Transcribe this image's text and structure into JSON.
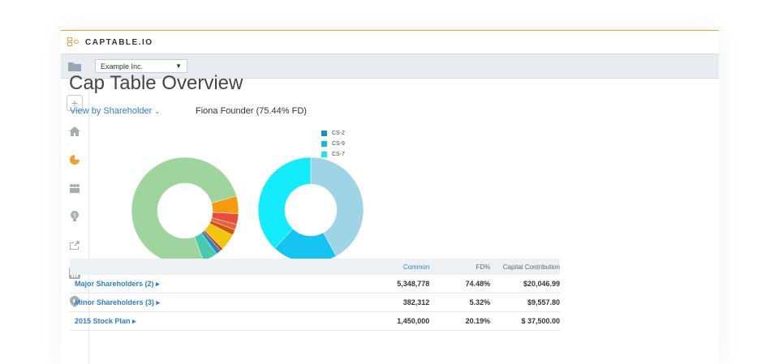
{
  "app": {
    "logo_text": "CAPTABLE.IO"
  },
  "toolbar": {
    "company": "Example Inc.",
    "dropdown_arrow": "▼"
  },
  "sidebar": {
    "items": [
      {
        "icon": "plus-icon"
      },
      {
        "icon": "home-icon"
      },
      {
        "icon": "pie-chart-icon"
      },
      {
        "icon": "people-icon"
      },
      {
        "icon": "lightbulb-icon"
      },
      {
        "icon": "share-icon"
      },
      {
        "icon": "bar-chart-icon"
      },
      {
        "icon": "location-icon"
      }
    ]
  },
  "main": {
    "title": "Cap Table Overview",
    "view_by": "View by Shareholder",
    "selected_holder": "Fiona Founder (75.44% FD)"
  },
  "colors": {
    "accent": "#f0a030",
    "link": "#2f7fc1"
  },
  "chart_data": [
    {
      "type": "pie",
      "values": [
        75.44,
        5.32,
        3.2,
        1.7,
        1.7,
        5.0,
        0.8,
        1.5,
        4.5
      ],
      "colors": [
        "#9ed49e",
        "#f39c12",
        "#e74c3c",
        "#e8613c",
        "#d35400",
        "#f1c40f",
        "#c0392b",
        "#2e86c1",
        "#48c9b0"
      ]
    },
    {
      "type": "pie",
      "values": [
        42,
        20,
        38
      ],
      "colors": [
        "#9fd3e6",
        "#15c3f0",
        "#14ecfb"
      ],
      "legend": [
        "CS-2",
        "CS-9",
        "CS-7"
      ],
      "legend_colors": [
        "#1a8fc4",
        "#18b7e8",
        "#19e6f7"
      ]
    }
  ],
  "table": {
    "headers": [
      "",
      "Common",
      "FD%",
      "Capital Contribution"
    ],
    "rows": [
      {
        "name": "Major Shareholders (2) ▸",
        "common": "5,348,778",
        "fd": "74.48%",
        "cap": "$20,046.99"
      },
      {
        "name": "Minor Shareholders (3) ▸",
        "common": "382,312",
        "fd": "5.32%",
        "cap": "$9,557.80"
      },
      {
        "name": "2015 Stock Plan ▸",
        "common": "1,450,000",
        "fd": "20.19%",
        "cap": "$ 37,500.00"
      }
    ]
  }
}
